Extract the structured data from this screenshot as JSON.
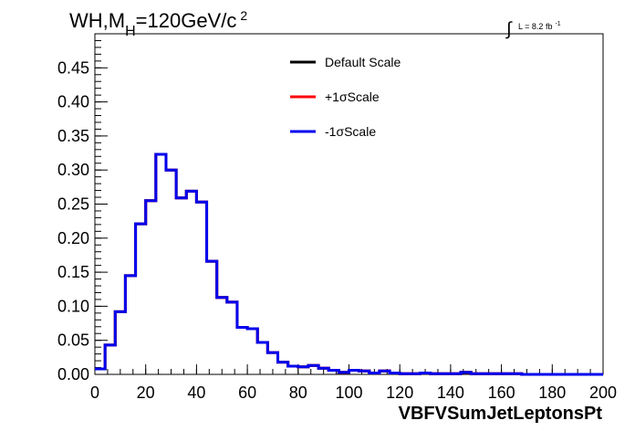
{
  "chart_data": {
    "type": "line",
    "title_parts": {
      "main": "WH,M",
      "sub": "H",
      "rest": "=120GeV/c",
      "sup": "2"
    },
    "lumi_parts": {
      "integral": "∫",
      "text": "L = 8.2 fb",
      "sup": "-1"
    },
    "xlabel": "VBFVSumJetLeptonsPt",
    "ylabel": "",
    "xlim": [
      0,
      200
    ],
    "ylim": [
      0,
      0.5
    ],
    "x_ticks": [
      "0",
      "20",
      "40",
      "60",
      "80",
      "100",
      "120",
      "140",
      "160",
      "180",
      "200"
    ],
    "y_ticks": [
      "0.00",
      "0.05",
      "0.10",
      "0.15",
      "0.20",
      "0.25",
      "0.30",
      "0.35",
      "0.40",
      "0.45"
    ],
    "grid": false,
    "legend_position": "top-right",
    "bin_width": 4,
    "series": [
      {
        "name": "Default Scale",
        "color": "#000000",
        "values": [
          0.008,
          0.043,
          0.092,
          0.145,
          0.221,
          0.255,
          0.323,
          0.3,
          0.259,
          0.269,
          0.253,
          0.166,
          0.113,
          0.106,
          0.069,
          0.067,
          0.047,
          0.032,
          0.018,
          0.012,
          0.011,
          0.013,
          0.009,
          0.006,
          0.003,
          0.006,
          0.005,
          0.002,
          0.005,
          0.002,
          0.001,
          0.001,
          0.002,
          0.001,
          0.001,
          0.001,
          0.003,
          0.001,
          0.001,
          0.001,
          0.001,
          0.001,
          0.0,
          0.0,
          0.0,
          0.0,
          0.0,
          0.0,
          0.0,
          0.0
        ]
      },
      {
        "name": "+1σScale",
        "color": "#ff0000",
        "values": [
          0.008,
          0.043,
          0.092,
          0.145,
          0.221,
          0.255,
          0.323,
          0.3,
          0.259,
          0.269,
          0.253,
          0.166,
          0.113,
          0.106,
          0.069,
          0.067,
          0.047,
          0.032,
          0.018,
          0.012,
          0.011,
          0.013,
          0.009,
          0.006,
          0.003,
          0.006,
          0.005,
          0.002,
          0.005,
          0.002,
          0.001,
          0.001,
          0.002,
          0.001,
          0.001,
          0.001,
          0.003,
          0.001,
          0.001,
          0.001,
          0.001,
          0.001,
          0.0,
          0.0,
          0.0,
          0.0,
          0.0,
          0.0,
          0.0,
          0.0
        ]
      },
      {
        "name": "-1σScale",
        "color": "#0000ee",
        "values": [
          0.008,
          0.043,
          0.092,
          0.145,
          0.221,
          0.255,
          0.323,
          0.3,
          0.259,
          0.269,
          0.253,
          0.166,
          0.113,
          0.106,
          0.069,
          0.067,
          0.047,
          0.032,
          0.018,
          0.012,
          0.011,
          0.013,
          0.009,
          0.006,
          0.003,
          0.006,
          0.005,
          0.002,
          0.005,
          0.002,
          0.001,
          0.001,
          0.002,
          0.001,
          0.001,
          0.001,
          0.003,
          0.001,
          0.001,
          0.001,
          0.001,
          0.001,
          0.0,
          0.0,
          0.0,
          0.0,
          0.0,
          0.0,
          0.0,
          0.0
        ]
      }
    ]
  }
}
